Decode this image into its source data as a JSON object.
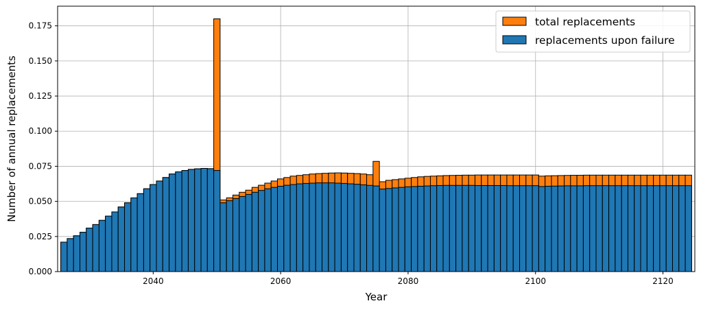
{
  "chart_data": {
    "type": "bar",
    "stacked_overlay": true,
    "xlabel": "Year",
    "ylabel": "Number of annual replacements",
    "xlim": [
      2025,
      2125
    ],
    "ylim": [
      0,
      0.189
    ],
    "xticks": [
      2040,
      2060,
      2080,
      2100,
      2120
    ],
    "xtick_labels": [
      "2040",
      "2060",
      "2080",
      "2100",
      "2120"
    ],
    "yticks": [
      0,
      0.025,
      0.05,
      0.075,
      0.1,
      0.125,
      0.15,
      0.175
    ],
    "ytick_labels": [
      "0.000",
      "0.025",
      "0.050",
      "0.075",
      "0.100",
      "0.125",
      "0.150",
      "0.175"
    ],
    "grid": true,
    "legend_position": "top-right",
    "bin_width": 1,
    "x": [
      2026,
      2027,
      2028,
      2029,
      2030,
      2031,
      2032,
      2033,
      2034,
      2035,
      2036,
      2037,
      2038,
      2039,
      2040,
      2041,
      2042,
      2043,
      2044,
      2045,
      2046,
      2047,
      2048,
      2049,
      2050,
      2051,
      2052,
      2053,
      2054,
      2055,
      2056,
      2057,
      2058,
      2059,
      2060,
      2061,
      2062,
      2063,
      2064,
      2065,
      2066,
      2067,
      2068,
      2069,
      2070,
      2071,
      2072,
      2073,
      2074,
      2075,
      2076,
      2077,
      2078,
      2079,
      2080,
      2081,
      2082,
      2083,
      2084,
      2085,
      2086,
      2087,
      2088,
      2089,
      2090,
      2091,
      2092,
      2093,
      2094,
      2095,
      2096,
      2097,
      2098,
      2099,
      2100,
      2101,
      2102,
      2103,
      2104,
      2105,
      2106,
      2107,
      2108,
      2109,
      2110,
      2111,
      2112,
      2113,
      2114,
      2115,
      2116,
      2117,
      2118,
      2119,
      2120,
      2121,
      2122,
      2123,
      2124
    ],
    "series": [
      {
        "name": "total replacements",
        "color": "#ff7f0e",
        "values": [
          0.021,
          0.0235,
          0.0255,
          0.028,
          0.031,
          0.0335,
          0.0365,
          0.0395,
          0.0425,
          0.046,
          0.049,
          0.0525,
          0.0555,
          0.059,
          0.062,
          0.0645,
          0.067,
          0.0695,
          0.071,
          0.072,
          0.0728,
          0.0732,
          0.0735,
          0.0733,
          0.18,
          0.051,
          0.0525,
          0.0545,
          0.0565,
          0.058,
          0.06,
          0.0615,
          0.063,
          0.0645,
          0.066,
          0.067,
          0.068,
          0.0685,
          0.069,
          0.0695,
          0.0698,
          0.07,
          0.0702,
          0.0703,
          0.0702,
          0.07,
          0.0698,
          0.0695,
          0.069,
          0.0785,
          0.064,
          0.065,
          0.0655,
          0.066,
          0.0665,
          0.067,
          0.0675,
          0.0678,
          0.068,
          0.0682,
          0.0684,
          0.0685,
          0.0686,
          0.0687,
          0.0687,
          0.0688,
          0.0688,
          0.0688,
          0.0688,
          0.0688,
          0.0688,
          0.0688,
          0.0688,
          0.0688,
          0.0688,
          0.068,
          0.0682,
          0.0683,
          0.0684,
          0.0685,
          0.0686,
          0.0686,
          0.0687,
          0.0687,
          0.0687,
          0.0687,
          0.0687,
          0.0687,
          0.0687,
          0.0687,
          0.0687,
          0.0687,
          0.0687,
          0.0687,
          0.0687,
          0.0687,
          0.0687,
          0.0687,
          0.0687
        ]
      },
      {
        "name": "replacements upon failure",
        "color": "#1f77b4",
        "values": [
          0.021,
          0.0235,
          0.0255,
          0.028,
          0.031,
          0.0335,
          0.0365,
          0.0395,
          0.0425,
          0.046,
          0.049,
          0.0525,
          0.0555,
          0.059,
          0.062,
          0.0645,
          0.067,
          0.0695,
          0.071,
          0.072,
          0.0728,
          0.0732,
          0.0735,
          0.0733,
          0.072,
          0.049,
          0.0505,
          0.052,
          0.0535,
          0.055,
          0.0565,
          0.0578,
          0.059,
          0.06,
          0.0608,
          0.0615,
          0.062,
          0.0625,
          0.0628,
          0.063,
          0.0632,
          0.0632,
          0.0632,
          0.063,
          0.0628,
          0.0625,
          0.0622,
          0.0618,
          0.0614,
          0.061,
          0.0588,
          0.0592,
          0.0596,
          0.06,
          0.0604,
          0.0606,
          0.0608,
          0.061,
          0.0612,
          0.0613,
          0.0614,
          0.0614,
          0.0614,
          0.0614,
          0.0614,
          0.0613,
          0.0613,
          0.0613,
          0.0613,
          0.0613,
          0.0612,
          0.0612,
          0.0612,
          0.0612,
          0.0612,
          0.0606,
          0.0608,
          0.0609,
          0.061,
          0.0611,
          0.0611,
          0.0611,
          0.0612,
          0.0612,
          0.0612,
          0.0612,
          0.0612,
          0.0612,
          0.0612,
          0.0612,
          0.0612,
          0.0612,
          0.0612,
          0.0612,
          0.0612,
          0.0612,
          0.0612,
          0.0612,
          0.0612
        ]
      }
    ]
  }
}
